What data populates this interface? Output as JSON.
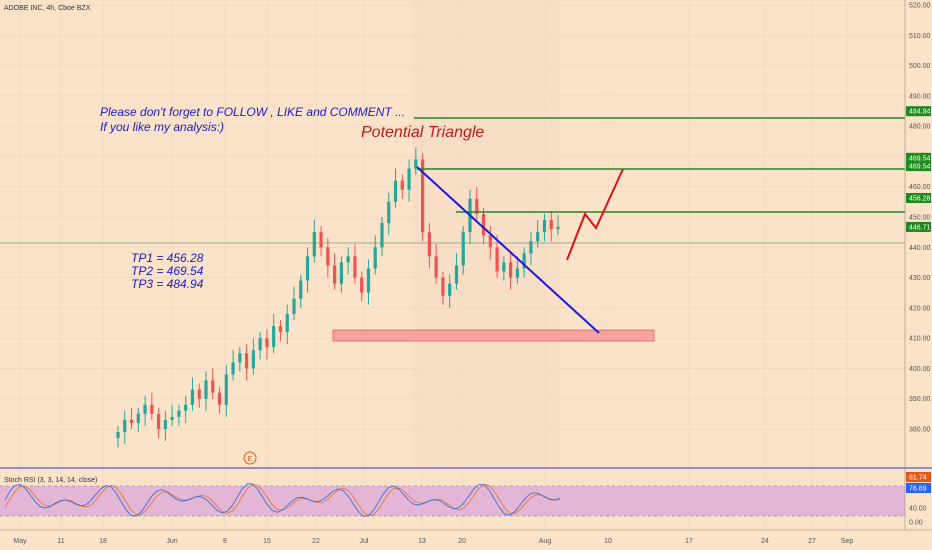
{
  "header": {
    "symbol": "ADOBE INC, 4h, Cboe BZX"
  },
  "notes": {
    "line1": "Please don't forget  to FOLLOW , LIKE and COMMENT ...",
    "line2": "If you like my analysis:)",
    "pattern_title": "Potential Triangle",
    "tp1": "TP1 = 456.28",
    "tp2": "TP2 = 469.54",
    "tp3": "TP3 = 484.94",
    "earnings_marker": "E"
  },
  "price_axis": {
    "ticks": [
      "520.00",
      "510.00",
      "500.00",
      "490.00",
      "480.00",
      "470.00",
      "460.00",
      "450.00",
      "440.00",
      "430.00",
      "420.00",
      "410.00",
      "400.00",
      "390.00",
      "380.00"
    ],
    "labels": [
      {
        "text": "484.94",
        "value": 484.94,
        "color": "#1e8a1e"
      },
      {
        "text": "469.54",
        "value": 469.54,
        "color": "#1e8a1e"
      },
      {
        "text": "469.54",
        "value": 466.8,
        "color": "#1e8a1e"
      },
      {
        "text": "456.28",
        "value": 456.28,
        "color": "#1e8a1e"
      },
      {
        "text": "446.71",
        "value": 446.71,
        "color": "#1e8a1e"
      }
    ]
  },
  "rsi": {
    "title": "Stoch RSI (3, 3, 14, 14, close)",
    "ticks": [
      "80.00",
      "40.00",
      "0.00"
    ],
    "labels": [
      {
        "text": "81.74",
        "color": "#e05a1a"
      },
      {
        "text": "76.89",
        "color": "#2962ff"
      }
    ]
  },
  "time_axis": {
    "labels": [
      "May",
      "11",
      "18",
      "Jun",
      "8",
      "15",
      "22",
      "Jul",
      "13",
      "20",
      "Aug",
      "10",
      "17",
      "24",
      "27",
      "Sep"
    ]
  },
  "colors": {
    "up": "#26a69a",
    "down": "#ef5350",
    "green_line": "#1e8a1e",
    "blue_line": "#1a1adb",
    "projection": "#e01010",
    "support_zone": "#f4a3a0"
  },
  "chart_data": {
    "type": "candlestick",
    "symbol": "ADOBE INC",
    "timeframe": "4h",
    "ylim": [
      376,
      522
    ],
    "last_price": 446.71,
    "horizontal_levels": [
      484.94,
      469.54,
      456.28
    ],
    "support_zone": [
      417,
      421
    ],
    "descending_trendline": {
      "from": 469.5,
      "to": 420
    },
    "projection": [
      441,
      447,
      456,
      452,
      469.5
    ],
    "targets": {
      "TP1": 456.28,
      "TP2": 469.54,
      "TP3": 484.94
    },
    "closes_approx": [
      379,
      383,
      382,
      385,
      388,
      385,
      380,
      383,
      384,
      386,
      388,
      393,
      390,
      396,
      392,
      388,
      398,
      402,
      405,
      400,
      406,
      410,
      407,
      414,
      412,
      418,
      423,
      429,
      437,
      445,
      440,
      434,
      428,
      435,
      437,
      430,
      425,
      433,
      440,
      448,
      455,
      462,
      459,
      466,
      469,
      445,
      437,
      430,
      424,
      428,
      434,
      445,
      456,
      451,
      444,
      440,
      432,
      435,
      430,
      433,
      438,
      442,
      445,
      449,
      446,
      446.71
    ],
    "stoch_rsi": {
      "k_last": 81.74,
      "d_last": 76.89,
      "upper": 80,
      "lower": 20
    }
  }
}
